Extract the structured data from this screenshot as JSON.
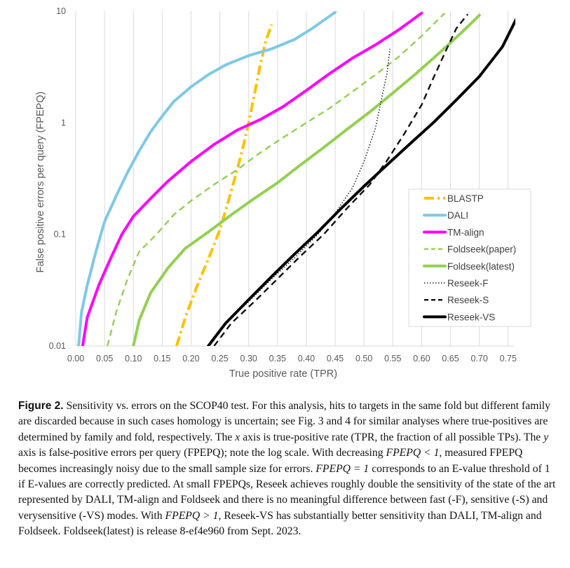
{
  "chart_data": {
    "type": "line",
    "xlabel": "True positive rate (TPR)",
    "ylabel": "False positive errors per query (FPEPQ)",
    "xlim": [
      0,
      0.76
    ],
    "ylim": [
      0.01,
      10
    ],
    "yscale": "log",
    "x_ticks": [
      "0.00",
      "0.05",
      "0.10",
      "0.15",
      "0.20",
      "0.25",
      "0.30",
      "0.35",
      "0.40",
      "0.45",
      "0.50",
      "0.55",
      "0.60",
      "0.65",
      "0.70",
      "0.75"
    ],
    "y_ticks": [
      "0.01",
      "0.1",
      "1",
      "10"
    ],
    "grid": "vertical",
    "legend_position": "lower-right",
    "series": [
      {
        "name": "BLASTP",
        "color": "#FFC000",
        "style": "dashdot",
        "points": [
          [
            0.175,
            0.01
          ],
          [
            0.19,
            0.018
          ],
          [
            0.21,
            0.034
          ],
          [
            0.23,
            0.06
          ],
          [
            0.25,
            0.11
          ],
          [
            0.265,
            0.2
          ],
          [
            0.28,
            0.38
          ],
          [
            0.29,
            0.6
          ],
          [
            0.3,
            1.0
          ],
          [
            0.31,
            1.8
          ],
          [
            0.32,
            3.3
          ],
          [
            0.33,
            5.5
          ],
          [
            0.34,
            7.6
          ]
        ]
      },
      {
        "name": "DALI",
        "color": "#7EC8E8",
        "style": "solid",
        "points": [
          [
            0.005,
            0.01
          ],
          [
            0.01,
            0.02
          ],
          [
            0.02,
            0.035
          ],
          [
            0.035,
            0.07
          ],
          [
            0.05,
            0.13
          ],
          [
            0.07,
            0.22
          ],
          [
            0.09,
            0.36
          ],
          [
            0.11,
            0.56
          ],
          [
            0.13,
            0.83
          ],
          [
            0.15,
            1.15
          ],
          [
            0.17,
            1.55
          ],
          [
            0.2,
            2.1
          ],
          [
            0.23,
            2.7
          ],
          [
            0.26,
            3.3
          ],
          [
            0.3,
            4.0
          ],
          [
            0.34,
            4.6
          ],
          [
            0.38,
            5.6
          ],
          [
            0.41,
            7.0
          ],
          [
            0.44,
            9.0
          ],
          [
            0.45,
            9.8
          ]
        ]
      },
      {
        "name": "TM-align",
        "color": "#FF00FF",
        "style": "solid",
        "points": [
          [
            0.012,
            0.01
          ],
          [
            0.02,
            0.018
          ],
          [
            0.04,
            0.035
          ],
          [
            0.06,
            0.06
          ],
          [
            0.08,
            0.1
          ],
          [
            0.1,
            0.145
          ],
          [
            0.13,
            0.21
          ],
          [
            0.16,
            0.3
          ],
          [
            0.2,
            0.45
          ],
          [
            0.24,
            0.64
          ],
          [
            0.28,
            0.86
          ],
          [
            0.32,
            1.07
          ],
          [
            0.36,
            1.4
          ],
          [
            0.4,
            1.95
          ],
          [
            0.44,
            2.75
          ],
          [
            0.48,
            3.8
          ],
          [
            0.52,
            5.0
          ],
          [
            0.56,
            6.8
          ],
          [
            0.6,
            9.6
          ]
        ]
      },
      {
        "name": "Foldseek(paper)",
        "color": "#92D050",
        "style": "dashed",
        "points": [
          [
            0.055,
            0.01
          ],
          [
            0.07,
            0.02
          ],
          [
            0.09,
            0.04
          ],
          [
            0.11,
            0.07
          ],
          [
            0.14,
            0.1
          ],
          [
            0.17,
            0.15
          ],
          [
            0.2,
            0.2
          ],
          [
            0.24,
            0.28
          ],
          [
            0.28,
            0.38
          ],
          [
            0.32,
            0.54
          ],
          [
            0.36,
            0.74
          ],
          [
            0.4,
            1.0
          ],
          [
            0.44,
            1.35
          ],
          [
            0.48,
            1.9
          ],
          [
            0.52,
            2.7
          ],
          [
            0.56,
            3.9
          ],
          [
            0.6,
            6.0
          ],
          [
            0.64,
            9.6
          ]
        ]
      },
      {
        "name": "Foldseek(latest)",
        "color": "#92D050",
        "style": "solid",
        "points": [
          [
            0.1,
            0.01
          ],
          [
            0.11,
            0.017
          ],
          [
            0.13,
            0.03
          ],
          [
            0.16,
            0.05
          ],
          [
            0.19,
            0.075
          ],
          [
            0.23,
            0.105
          ],
          [
            0.27,
            0.15
          ],
          [
            0.31,
            0.21
          ],
          [
            0.35,
            0.29
          ],
          [
            0.39,
            0.42
          ],
          [
            0.43,
            0.6
          ],
          [
            0.47,
            0.87
          ],
          [
            0.51,
            1.25
          ],
          [
            0.55,
            1.85
          ],
          [
            0.59,
            2.75
          ],
          [
            0.63,
            4.2
          ],
          [
            0.67,
            6.5
          ],
          [
            0.7,
            9.2
          ]
        ]
      },
      {
        "name": "Reseek-F",
        "color": "#222222",
        "style": "dotted",
        "points": [
          [
            0.23,
            0.01
          ],
          [
            0.26,
            0.016
          ],
          [
            0.3,
            0.025
          ],
          [
            0.34,
            0.04
          ],
          [
            0.38,
            0.062
          ],
          [
            0.42,
            0.1
          ],
          [
            0.45,
            0.155
          ],
          [
            0.48,
            0.26
          ],
          [
            0.5,
            0.45
          ],
          [
            0.52,
            0.9
          ],
          [
            0.53,
            1.6
          ],
          [
            0.54,
            2.8
          ],
          [
            0.545,
            4.6
          ]
        ]
      },
      {
        "name": "Reseek-S",
        "color": "#111111",
        "style": "dashed",
        "points": [
          [
            0.24,
            0.01
          ],
          [
            0.27,
            0.016
          ],
          [
            0.31,
            0.025
          ],
          [
            0.35,
            0.04
          ],
          [
            0.39,
            0.064
          ],
          [
            0.43,
            0.1
          ],
          [
            0.47,
            0.17
          ],
          [
            0.51,
            0.28
          ],
          [
            0.54,
            0.46
          ],
          [
            0.57,
            0.8
          ],
          [
            0.6,
            1.45
          ],
          [
            0.62,
            2.5
          ],
          [
            0.64,
            4.2
          ],
          [
            0.66,
            7.0
          ],
          [
            0.68,
            9.4
          ]
        ]
      },
      {
        "name": "Reseek-VS",
        "color": "#000000",
        "style": "solid",
        "points": [
          [
            0.23,
            0.01
          ],
          [
            0.26,
            0.016
          ],
          [
            0.3,
            0.026
          ],
          [
            0.34,
            0.042
          ],
          [
            0.38,
            0.067
          ],
          [
            0.42,
            0.105
          ],
          [
            0.46,
            0.17
          ],
          [
            0.5,
            0.27
          ],
          [
            0.54,
            0.42
          ],
          [
            0.58,
            0.65
          ],
          [
            0.62,
            1.0
          ],
          [
            0.66,
            1.6
          ],
          [
            0.7,
            2.6
          ],
          [
            0.74,
            4.8
          ],
          [
            0.77,
            9.8
          ]
        ]
      }
    ]
  },
  "caption": {
    "label": "Figure 2.",
    "p1": " Sensitivity vs. errors on the SCOP40 test. For this analysis, hits to targets in the same fold but different family are discarded because in such cases homology is uncertain; see Fig. 3 and 4 for similar analyses where true-positives are determined by family and fold, respectively. The ",
    "x": "x",
    "p2": " axis is true-positive rate (TPR, the fraction of all possible TPs). The ",
    "y": "y",
    "p3": " axis is false-positive errors per query (FPEPQ); note the log scale. With decreasing ",
    "m1": "FPEPQ < 1",
    "p4": ", measured FPEPQ becomes increasingly noisy due to the small sample size for errors. ",
    "m2": "FPEPQ = 1",
    "p5": " corresponds to an E-value threshold of 1 if E-values are correctly predicted. At small FPEPQs, Reseek achieves roughly double the sensitivity of the state of the art represented by DALI, TM-align and Foldseek and there is no meaningful difference between fast (-F), sensitive (-S) and verysensitive (-VS) modes. With ",
    "m3": "FPEPQ > 1",
    "p6": ", Reseek-VS has substantially better sensitivity than DALI, TM-align and Foldseek. Foldseek(latest) is release 8-ef4e960 from Sept. 2023."
  }
}
